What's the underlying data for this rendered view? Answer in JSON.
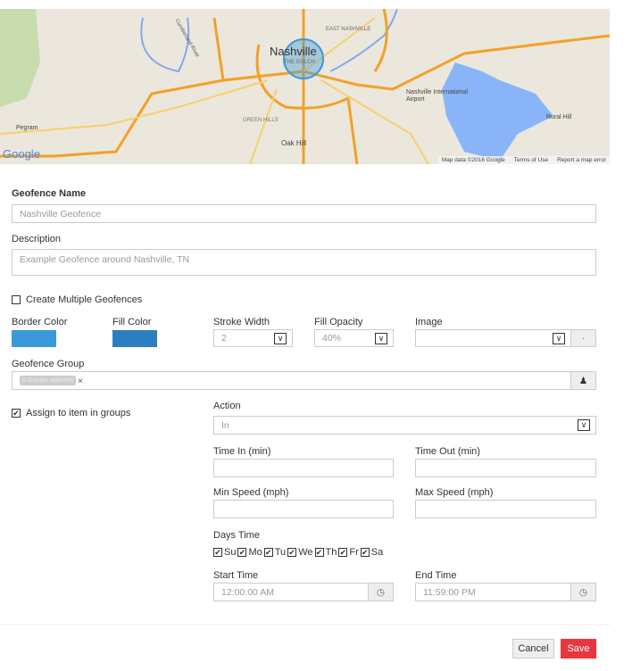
{
  "map": {
    "city": "Nashville",
    "district": "THE GULCH",
    "labels": [
      "East Nashville",
      "Nashville International Airport",
      "Rural Hill",
      "Pegram",
      "Green Hills",
      "Oak Hill",
      "Cumberland River"
    ],
    "logo": "Google",
    "attribution": "Map data ©2016 Google",
    "terms": "Terms of Use",
    "report": "Report a map error",
    "geofence_color": "#3a9ad9"
  },
  "form": {
    "name_label": "Geofence Name",
    "name_value": "Nashville Geofence",
    "description_label": "Description",
    "description_value": "Example Geofence around Nashville, TN",
    "multiple_label": "Create Multiple Geofences",
    "multiple_checked": false,
    "border_color_label": "Border Color",
    "border_color": "#3a9ad9",
    "fill_color_label": "Fill Color",
    "fill_color": "#2b7fc0",
    "stroke_width_label": "Stroke Width",
    "stroke_width": "2",
    "fill_opacity_label": "Fill Opacity",
    "fill_opacity": "40%",
    "image_label": "Image",
    "image_value": "",
    "image_button": "·",
    "group_label": "Geofence Group",
    "group_tag": "5 Groups selected",
    "group_tag_remove": "×",
    "assign_label": "Assign to item in groups",
    "assign_checked": true,
    "action_label": "Action",
    "action_value": "In",
    "time_in_label": "Time In (min)",
    "time_out_label": "Time Out (min)",
    "min_speed_label": "Min Speed (mph)",
    "max_speed_label": "Max Speed (mph)",
    "days_label": "Days Time",
    "days": [
      "Su",
      "Mo",
      "Tu",
      "We",
      "Th",
      "Fr",
      "Sa"
    ],
    "start_label": "Start Time",
    "start_value": "12:00:00 AM",
    "end_label": "End Time",
    "end_value": "11:59:00 PM",
    "cancel": "Cancel",
    "save": "Save",
    "save_color": "#e8363f"
  }
}
